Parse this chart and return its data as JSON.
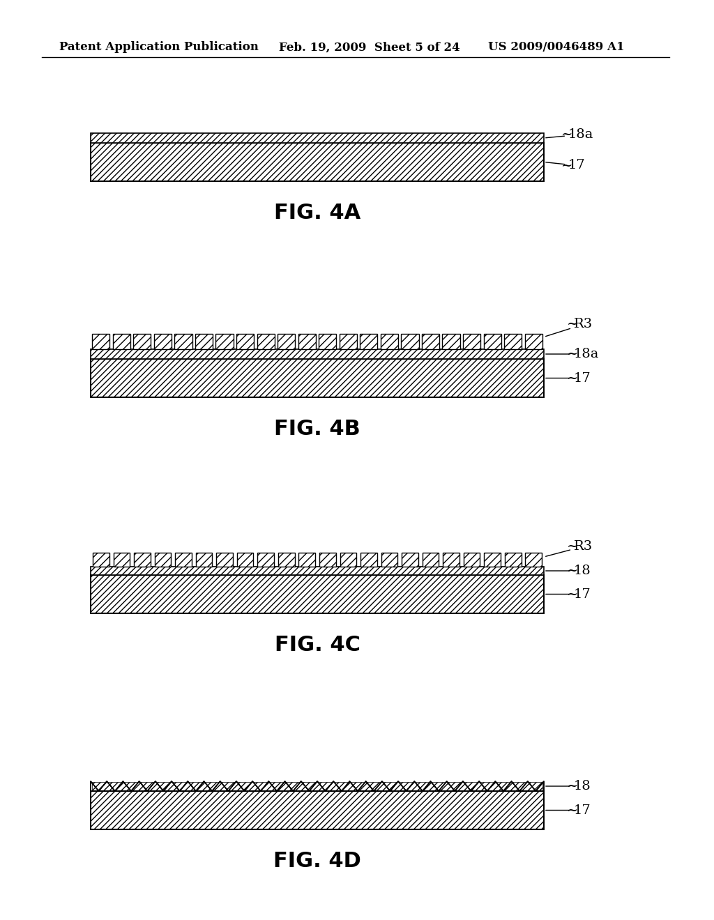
{
  "header_left": "Patent Application Publication",
  "header_mid": "Feb. 19, 2009  Sheet 5 of 24",
  "header_right": "US 2009/0046489 A1",
  "figures": [
    "FIG. 4A",
    "FIG. 4B",
    "FIG. 4C",
    "FIG. 4D"
  ],
  "background": "#ffffff",
  "line_color": "#000000",
  "hatch_color": "#000000",
  "fig_label_fontsize": 22,
  "header_fontsize": 12,
  "annotation_fontsize": 14
}
